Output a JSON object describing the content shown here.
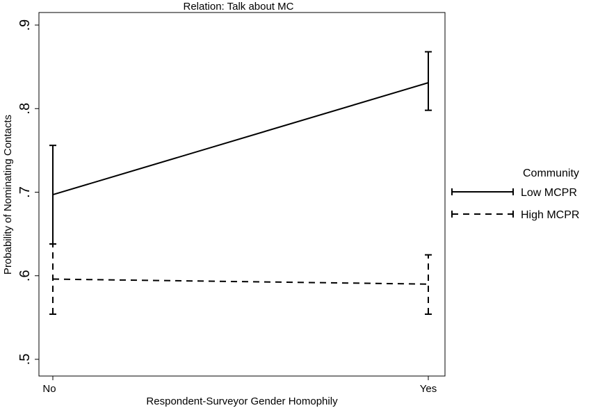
{
  "chart_data": {
    "type": "line",
    "title": "Relation: Talk about MC",
    "xlabel": "Respondent-Surveyor Gender Homophily",
    "ylabel": "Probability of Nominating Contacts",
    "categories": [
      "No",
      "Yes"
    ],
    "y_ticks": [
      0.5,
      0.6,
      0.7,
      0.8,
      0.9
    ],
    "y_tick_labels": [
      ".5",
      ".6",
      ".7",
      ".8",
      ".9"
    ],
    "ylim": [
      0.48,
      0.915
    ],
    "grid": false,
    "legend": {
      "title": "Community",
      "placement": "right",
      "entries": [
        "Low MCPR",
        "High MCPR"
      ]
    },
    "series": [
      {
        "name": "Low MCPR",
        "style": "solid",
        "values": [
          0.697,
          0.831
        ],
        "ci_low": [
          0.638,
          0.798
        ],
        "ci_high": [
          0.756,
          0.868
        ]
      },
      {
        "name": "High MCPR",
        "style": "dashed",
        "values": [
          0.596,
          0.59
        ],
        "ci_low": [
          0.554,
          0.554
        ],
        "ci_high": [
          0.638,
          0.625
        ]
      }
    ],
    "colors": {
      "line": "#000000",
      "background": "#ffffff"
    }
  }
}
